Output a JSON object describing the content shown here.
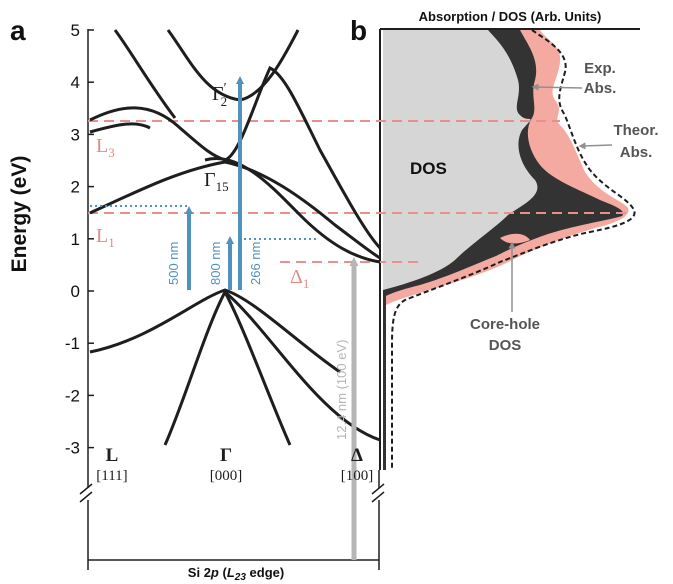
{
  "panel_a": {
    "panel_label": "a",
    "y_axis_label": "Energy (eV)",
    "y_ticks": [
      "5",
      "4",
      "3",
      "2",
      "1",
      "0",
      "-1",
      "-2",
      "-3"
    ],
    "symmetry_points": [
      {
        "name": "L",
        "index": "[111]"
      },
      {
        "name": "Γ",
        "index": "[000]"
      },
      {
        "name": "Δ",
        "index": "[100]"
      }
    ],
    "level_labels": {
      "L3": {
        "main": "L",
        "sub": "3"
      },
      "L1": {
        "main": "L",
        "sub": "1"
      },
      "D1": {
        "main": "Δ",
        "sub": "1"
      },
      "G15": {
        "main": "Γ",
        "sub": "15"
      },
      "G2p": {
        "main": "Γ",
        "sub": "2",
        "sup": "′"
      }
    },
    "excitations": [
      {
        "label": "500 nm",
        "color": "#4f92bd"
      },
      {
        "label": "800 nm",
        "color": "#4f92bd"
      },
      {
        "label": "266 nm",
        "color": "#4f92bd"
      },
      {
        "label": "12.4 nm (100 eV)",
        "color": "#b5b5b5"
      }
    ],
    "bottom_label": {
      "pre": "Si 2",
      "p": "p",
      "open": " (",
      "L": "L",
      "sub": "23",
      "post": " edge)"
    }
  },
  "panel_b": {
    "panel_label": "b",
    "title": "Absorption / DOS (Arb. Units)",
    "labels": {
      "dos": "DOS",
      "exp_line1": "Exp.",
      "exp_line2": "Abs.",
      "theor_line1": "Theor.",
      "theor_line2": "Abs.",
      "corehole_line1": "Core-hole",
      "corehole_line2": "DOS"
    }
  },
  "colors": {
    "band": "#1e1e1e",
    "optical_arrow": "#4f92bd",
    "xray_arrow": "#b5b5b5",
    "level_dash": "#e8908a",
    "level_label": "#e08d88",
    "dos_fill": "#d6d6d6",
    "corehole_fill": "#333333",
    "exp_fill": "#f4aaa0",
    "theory_line": "#1e1e1e"
  }
}
